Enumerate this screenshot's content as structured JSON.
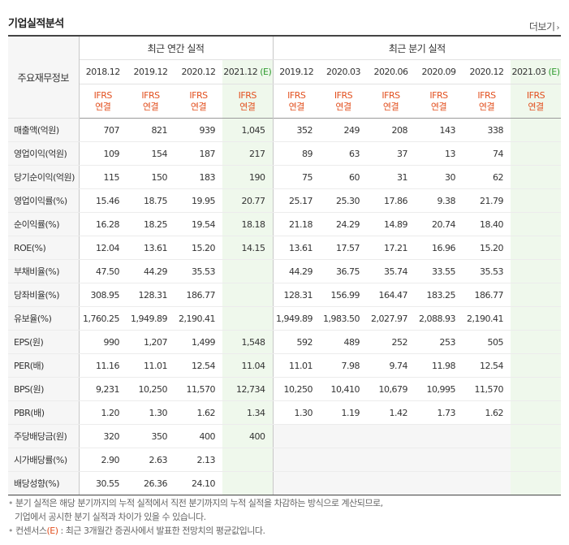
{
  "title": "기업실적분석",
  "more_label": "더보기",
  "header": {
    "row_label": "주요재무정보",
    "annual_label": "최근 연간 실적",
    "quarter_label": "최근 분기 실적",
    "annual_periods": [
      "2018.12",
      "2019.12",
      "2020.12",
      "2021.12"
    ],
    "annual_est_mark": "(E)",
    "quarter_periods": [
      "2019.12",
      "2020.03",
      "2020.06",
      "2020.09",
      "2020.12",
      "2021.03"
    ],
    "quarter_est_mark": "(E)",
    "ifrs": "IFRS",
    "basis": "연결"
  },
  "rows": [
    {
      "label": "매출액(억원)",
      "annual": [
        "707",
        "821",
        "939",
        "1,045"
      ],
      "quarter": [
        "352",
        "249",
        "208",
        "143",
        "338",
        ""
      ]
    },
    {
      "label": "영업이익(억원)",
      "annual": [
        "109",
        "154",
        "187",
        "217"
      ],
      "quarter": [
        "89",
        "63",
        "37",
        "13",
        "74",
        ""
      ]
    },
    {
      "label": "당기순이익(억원)",
      "annual": [
        "115",
        "150",
        "183",
        "190"
      ],
      "quarter": [
        "75",
        "60",
        "31",
        "30",
        "62",
        ""
      ]
    },
    {
      "label": "영업이익률(%)",
      "annual": [
        "15.46",
        "18.75",
        "19.95",
        "20.77"
      ],
      "quarter": [
        "25.17",
        "25.30",
        "17.86",
        "9.38",
        "21.79",
        ""
      ]
    },
    {
      "label": "순이익률(%)",
      "annual": [
        "16.28",
        "18.25",
        "19.54",
        "18.18"
      ],
      "quarter": [
        "21.18",
        "24.29",
        "14.89",
        "20.74",
        "18.40",
        ""
      ]
    },
    {
      "label": "ROE(%)",
      "annual": [
        "12.04",
        "13.61",
        "15.20",
        "14.15"
      ],
      "quarter": [
        "13.61",
        "17.57",
        "17.21",
        "16.96",
        "15.20",
        ""
      ]
    },
    {
      "label": "부채비율(%)",
      "annual": [
        "47.50",
        "44.29",
        "35.53",
        ""
      ],
      "quarter": [
        "44.29",
        "36.75",
        "35.74",
        "33.55",
        "35.53",
        ""
      ]
    },
    {
      "label": "당좌비율(%)",
      "annual": [
        "308.95",
        "128.31",
        "186.77",
        ""
      ],
      "quarter": [
        "128.31",
        "156.99",
        "164.47",
        "183.25",
        "186.77",
        ""
      ]
    },
    {
      "label": "유보율(%)",
      "annual": [
        "1,760.25",
        "1,949.89",
        "2,190.41",
        ""
      ],
      "quarter": [
        "1,949.89",
        "1,983.50",
        "2,027.97",
        "2,088.93",
        "2,190.41",
        ""
      ]
    },
    {
      "label": "EPS(원)",
      "annual": [
        "990",
        "1,207",
        "1,499",
        "1,548"
      ],
      "quarter": [
        "592",
        "489",
        "252",
        "253",
        "505",
        ""
      ]
    },
    {
      "label": "PER(배)",
      "annual": [
        "11.16",
        "11.01",
        "12.54",
        "11.04"
      ],
      "quarter": [
        "11.01",
        "7.98",
        "9.74",
        "11.98",
        "12.54",
        ""
      ]
    },
    {
      "label": "BPS(원)",
      "annual": [
        "9,231",
        "10,250",
        "11,570",
        "12,734"
      ],
      "quarter": [
        "10,250",
        "10,410",
        "10,679",
        "10,995",
        "11,570",
        ""
      ]
    },
    {
      "label": "PBR(배)",
      "annual": [
        "1.20",
        "1.30",
        "1.62",
        "1.34"
      ],
      "quarter": [
        "1.30",
        "1.19",
        "1.42",
        "1.73",
        "1.62",
        ""
      ]
    },
    {
      "label": "주당배당금(원)",
      "annual": [
        "320",
        "350",
        "400",
        "400"
      ],
      "quarter": [
        "",
        "",
        "",
        "",
        "",
        ""
      ]
    },
    {
      "label": "시가배당률(%)",
      "annual": [
        "2.90",
        "2.63",
        "2.13",
        ""
      ],
      "quarter": [
        "",
        "",
        "",
        "",
        "",
        ""
      ]
    },
    {
      "label": "배당성향(%)",
      "annual": [
        "30.55",
        "26.36",
        "24.10",
        ""
      ],
      "quarter": [
        "",
        "",
        "",
        "",
        "",
        ""
      ]
    }
  ],
  "notes": {
    "line1": "분기 실적은 해당 분기까지의 누적 실적에서 직전 분기까지의 누적 실적을 차감하는 방식으로 계산되므로,",
    "line2": "기업에서 공시한 분기 실적과 차이가 있을 수 있습니다.",
    "line3_prefix": "컨센서스",
    "line3_mark": "(E)",
    "line3_text": " : 최근 3개월간 증권사에서 발표한 전망치의 평균값입니다."
  }
}
